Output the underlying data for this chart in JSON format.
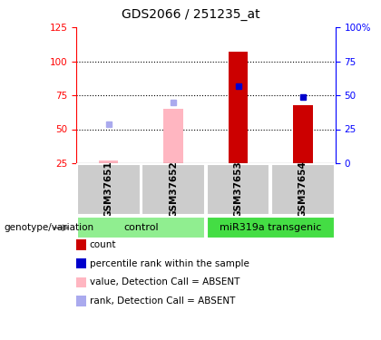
{
  "title": "GDS2066 / 251235_at",
  "samples": [
    "GSM37651",
    "GSM37652",
    "GSM37653",
    "GSM37654"
  ],
  "groups": [
    {
      "label": "control",
      "color": "#90ee90",
      "n": 2
    },
    {
      "label": "miR319a transgenic",
      "color": "#44dd44",
      "n": 2
    }
  ],
  "bar_values": [
    27,
    65,
    107,
    68
  ],
  "bar_colors": [
    "#ffb6c1",
    "#ffb6c1",
    "#cc0000",
    "#cc0000"
  ],
  "rank_values": [
    54,
    70,
    82,
    74
  ],
  "rank_absent": [
    true,
    true,
    false,
    false
  ],
  "rank_color_present": "#0000cc",
  "rank_color_absent": "#aaaaee",
  "ylim_left": [
    25,
    125
  ],
  "ylim_right": [
    0,
    100
  ],
  "yticks_left": [
    25,
    50,
    75,
    100,
    125
  ],
  "yticks_right": [
    0,
    25,
    50,
    75,
    100
  ],
  "ytick_labels_right": [
    "0",
    "25",
    "50",
    "75",
    "100%"
  ],
  "group_label": "genotype/variation",
  "legend_items": [
    {
      "color": "#cc0000",
      "label": "count"
    },
    {
      "color": "#0000cc",
      "label": "percentile rank within the sample"
    },
    {
      "color": "#ffb6c1",
      "label": "value, Detection Call = ABSENT"
    },
    {
      "color": "#aaaaee",
      "label": "rank, Detection Call = ABSENT"
    }
  ],
  "sample_box_color": "#cccccc",
  "plot_box_color": "white"
}
